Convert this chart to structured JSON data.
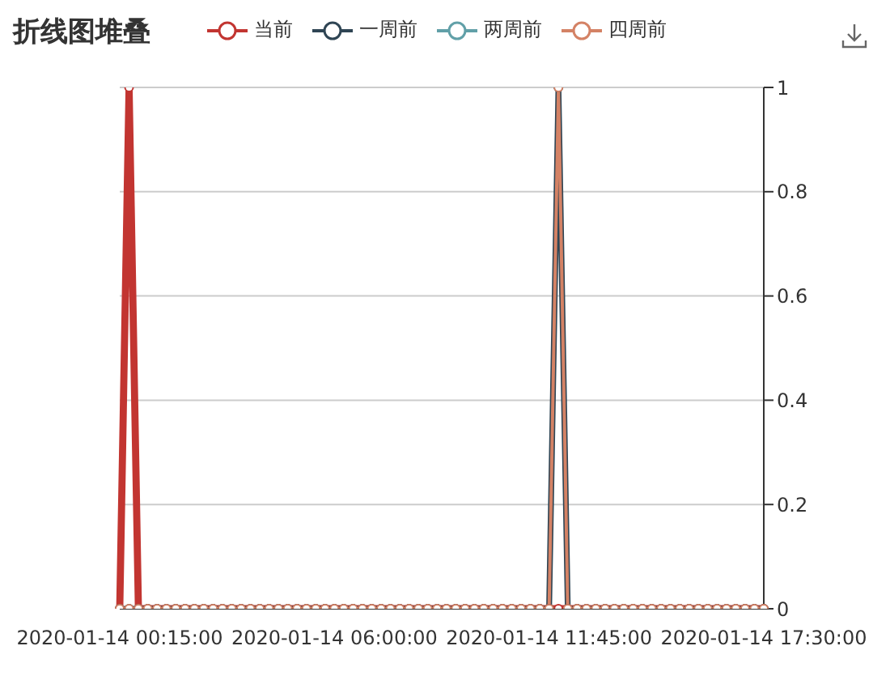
{
  "chart_data": {
    "type": "line",
    "title": "折线图堆叠",
    "categories": [
      "2020-01-14 00:15:00",
      null,
      null,
      null,
      null,
      null,
      null,
      null,
      null,
      null,
      null,
      null,
      null,
      null,
      null,
      null,
      null,
      null,
      null,
      null,
      null,
      null,
      null,
      "2020-01-14 06:00:00",
      null,
      null,
      null,
      null,
      null,
      null,
      null,
      null,
      null,
      null,
      null,
      null,
      null,
      null,
      null,
      null,
      null,
      null,
      null,
      null,
      null,
      null,
      "2020-01-14 11:45:00",
      null,
      null,
      null,
      null,
      null,
      null,
      null,
      null,
      null,
      null,
      null,
      null,
      null,
      null,
      null,
      null,
      null,
      null,
      null,
      null,
      null,
      null,
      "2020-01-14 17:30:00"
    ],
    "series": [
      {
        "name": "当前",
        "color": "#c23531",
        "values": [
          0,
          1,
          0,
          0,
          0,
          0,
          0,
          0,
          0,
          0,
          0,
          0,
          0,
          0,
          0,
          0,
          0,
          0,
          0,
          0,
          0,
          0,
          0,
          0,
          0,
          0,
          0,
          0,
          0,
          0,
          0,
          0,
          0,
          0,
          0,
          0,
          0,
          0,
          0,
          0,
          0,
          0,
          0,
          0,
          0,
          0,
          0,
          0,
          0,
          0,
          0,
          0,
          0,
          0,
          0,
          0,
          0,
          0,
          0,
          0,
          0,
          0,
          0,
          0,
          0,
          0,
          0,
          0,
          0,
          0
        ]
      },
      {
        "name": "一周前",
        "color": "#2f4554",
        "values": [
          0,
          0,
          0,
          0,
          0,
          0,
          0,
          0,
          0,
          0,
          0,
          0,
          0,
          0,
          0,
          0,
          0,
          0,
          0,
          0,
          0,
          0,
          0,
          0,
          0,
          0,
          0,
          0,
          0,
          0,
          0,
          0,
          0,
          0,
          0,
          0,
          0,
          0,
          0,
          0,
          0,
          0,
          0,
          0,
          0,
          0,
          0,
          1,
          0,
          0,
          0,
          0,
          0,
          0,
          0,
          0,
          0,
          0,
          0,
          0,
          0,
          0,
          0,
          0,
          0,
          0,
          0,
          0,
          0,
          0
        ]
      },
      {
        "name": "两周前",
        "color": "#61a0a8",
        "values": [
          null,
          null,
          null,
          null,
          null,
          null,
          null,
          null,
          null,
          null,
          null,
          null,
          null,
          null,
          null,
          null,
          null,
          null,
          null,
          null,
          null,
          null,
          null,
          null,
          null,
          null,
          null,
          null,
          null,
          null,
          null,
          null,
          null,
          null,
          null,
          null,
          null,
          null,
          null,
          null,
          null,
          null,
          null,
          null,
          null,
          null,
          null,
          null,
          null,
          null,
          null,
          null,
          null,
          null,
          null,
          null,
          null,
          null,
          null,
          null,
          null,
          null,
          null,
          null,
          null,
          null,
          null,
          null,
          null,
          null
        ]
      },
      {
        "name": "四周前",
        "color": "#d48265",
        "values": [
          0,
          0,
          0,
          0,
          0,
          0,
          0,
          0,
          0,
          0,
          0,
          0,
          0,
          0,
          0,
          0,
          0,
          0,
          0,
          0,
          0,
          0,
          0,
          0,
          0,
          0,
          0,
          0,
          0,
          0,
          0,
          0,
          0,
          0,
          0,
          0,
          0,
          0,
          0,
          0,
          0,
          0,
          0,
          0,
          0,
          0,
          0,
          1,
          0,
          0,
          0,
          0,
          0,
          0,
          0,
          0,
          0,
          0,
          0,
          0,
          0,
          0,
          0,
          0,
          0,
          0,
          0,
          0,
          0,
          0
        ]
      }
    ],
    "ylim": [
      0,
      1
    ],
    "yticks": [
      0,
      0.2,
      0.4,
      0.6,
      0.8,
      1
    ],
    "grid": "y",
    "legend": "top",
    "marker": "circle",
    "line_style": "solid"
  }
}
